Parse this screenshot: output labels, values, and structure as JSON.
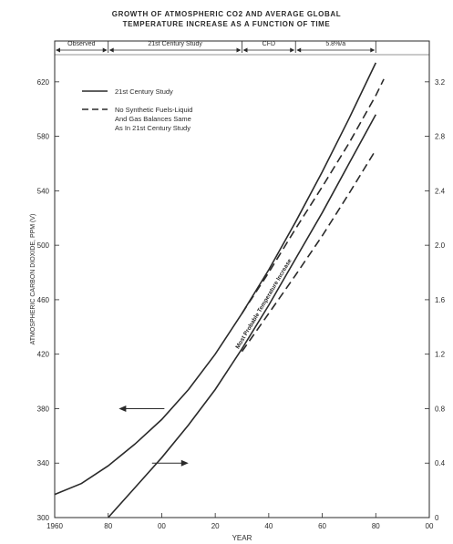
{
  "chart_data": {
    "type": "line",
    "title": "GROWTH OF ATMOSPHERIC CO2 AND AVERAGE GLOBAL",
    "subtitle": "TEMPERATURE INCREASE AS A FUNCTION OF TIME",
    "xlabel": "YEAR",
    "ylabel": "ATMOSPHERIC CARBON DIOXIDE, PPM (V)",
    "x_ticks": [
      1960,
      1980,
      2000,
      2020,
      2040,
      2060,
      2080,
      2100
    ],
    "x_tick_labels": [
      "1960",
      "80",
      "00",
      "20",
      "40",
      "60",
      "80",
      "00"
    ],
    "xlim": [
      1960,
      2100
    ],
    "y_ticks": [
      300,
      340,
      380,
      420,
      460,
      500,
      540,
      580,
      620
    ],
    "ylim": [
      300,
      650
    ],
    "y2_ticks": [
      0,
      0.4,
      0.8,
      1.2,
      1.6,
      2.0,
      2.4,
      2.8,
      3.2
    ],
    "y2_tick_labels": [
      "0",
      "0.4",
      "0.8",
      "1.2",
      "1.6",
      "2.0",
      "2.4",
      "2.8",
      "3.2"
    ],
    "y2lim": [
      0,
      3.5
    ],
    "periods": [
      {
        "label": "Observed",
        "start": 1960,
        "end": 1980
      },
      {
        "label": "21st Century Study",
        "start": 1980,
        "end": 2030
      },
      {
        "label": "CFD",
        "start": 2030,
        "end": 2050
      },
      {
        "label": "5.8%/a",
        "start": 2050,
        "end": 2080
      }
    ],
    "legend": {
      "position": "top-left",
      "entries": [
        {
          "style": "solid",
          "label": [
            "21st Century Study"
          ]
        },
        {
          "style": "dashed",
          "label": [
            "No Synthetic Fuels-Liquid",
            "And Gas Balances Same",
            "As In 21st Century Study"
          ]
        }
      ]
    },
    "band_annotation": "Most Probable Temperature Increase",
    "series": [
      {
        "axis": "left",
        "style": "solid",
        "x": [
          1960,
          1970,
          1980,
          1990,
          2000,
          2010,
          2020,
          2030,
          2040,
          2050,
          2060,
          2070,
          2080
        ],
        "y": [
          317,
          325,
          338,
          354,
          372,
          394,
          420,
          450,
          482,
          517,
          554,
          593,
          634
        ]
      },
      {
        "axis": "left",
        "style": "dashed",
        "x": [
          2030,
          2040,
          2050,
          2060,
          2070,
          2080,
          2083
        ],
        "y": [
          450,
          480,
          512,
          543,
          575,
          610,
          622
        ]
      },
      {
        "axis": "right",
        "style": "solid",
        "x": [
          1980,
          1990,
          2000,
          2010,
          2020,
          2030,
          2040,
          2050,
          2060,
          2070,
          2080
        ],
        "y": [
          0,
          0.22,
          0.44,
          0.68,
          0.94,
          1.24,
          1.56,
          1.9,
          2.24,
          2.6,
          2.96
        ]
      },
      {
        "axis": "right",
        "style": "dashed",
        "x": [
          2030,
          2040,
          2050,
          2060,
          2070,
          2080
        ],
        "y": [
          1.22,
          1.5,
          1.78,
          2.07,
          2.38,
          2.7
        ]
      }
    ],
    "arrows": [
      {
        "points_to": "left",
        "at_year": 2001,
        "value": 380
      },
      {
        "points_to": "right",
        "at_year": 2010,
        "value": 0.4
      }
    ],
    "grid": false
  }
}
